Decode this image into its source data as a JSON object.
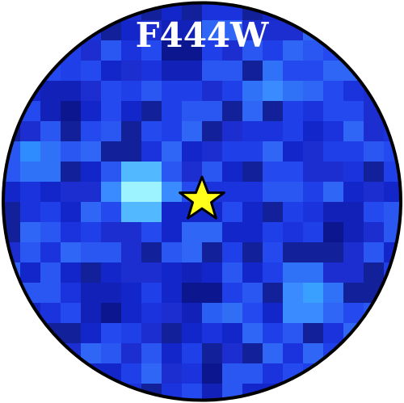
{
  "image": {
    "filter_label": "F444W",
    "marker_icon": "star-icon",
    "colors": {
      "background_blue": "#1f3fe8",
      "hotspot": "#c9ffff",
      "star_fill": "#ffff1a",
      "outline": "#000000"
    }
  }
}
